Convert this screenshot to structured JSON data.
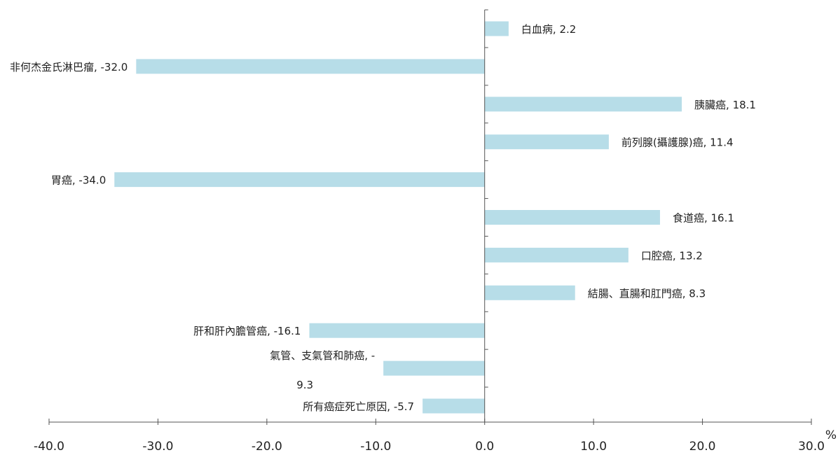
{
  "chart_data": {
    "type": "bar",
    "orientation": "horizontal",
    "categories": [
      "白血病",
      "非何杰金氏淋巴瘤",
      "胰臟癌",
      "前列腺(攝護腺)癌",
      "胃癌",
      "食道癌",
      "口腔癌",
      "結腸、直腸和肛門癌",
      "肝和肝內膽管癌",
      "氣管、支氣管和肺癌",
      "所有癌症死亡原因"
    ],
    "values": [
      2.2,
      -32.0,
      18.1,
      11.4,
      -34.0,
      16.1,
      13.2,
      8.3,
      -16.1,
      -9.3,
      -5.7
    ],
    "data_labels": [
      [
        "白血病, 2.2"
      ],
      [
        "非何杰金氏淋巴瘤, -32.0"
      ],
      [
        "胰臟癌, 18.1"
      ],
      [
        "前列腺(攝護腺)癌, 11.4"
      ],
      [
        "胃癌, -34.0"
      ],
      [
        "食道癌, 16.1"
      ],
      [
        "口腔癌, 13.2"
      ],
      [
        "結腸、直腸和肛門癌, 8.3"
      ],
      [
        "肝和肝內膽管癌, -16.1"
      ],
      [
        "氣管、支氣管和肺癌, -",
        "9.3"
      ],
      [
        "所有癌症死亡原因, -5.7"
      ]
    ],
    "xlim": [
      -40,
      30
    ],
    "xticks": [
      "-40.0",
      "-30.0",
      "-20.0",
      "-10.0",
      "0.0",
      "10.0",
      "20.0",
      "30.0"
    ],
    "unit": "%",
    "bar_color": "#b7dde8",
    "grid": false,
    "legend": "none"
  }
}
